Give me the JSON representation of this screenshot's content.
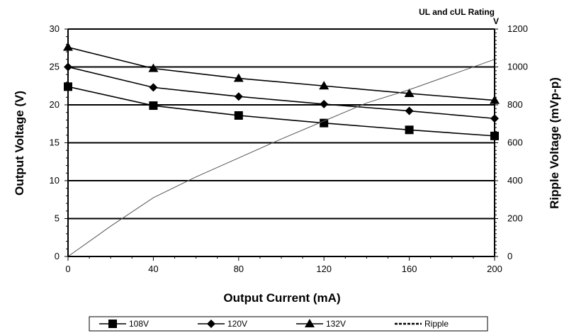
{
  "chart_data": {
    "type": "line",
    "title": "UL and cUL Rating",
    "title_suffix": "V",
    "xlabel": "Output Current (mA)",
    "ylabel": "Output Voltage (V)",
    "y2label": "Ripple Voltage (mVp-p)",
    "x": [
      0,
      40,
      80,
      120,
      160,
      200
    ],
    "x_ticks": [
      "0",
      "40",
      "80",
      "120",
      "160",
      "200"
    ],
    "xlim": [
      0,
      200
    ],
    "ylim": [
      0,
      30
    ],
    "y_ticks": [
      "0",
      "5",
      "10",
      "15",
      "20",
      "25",
      "30"
    ],
    "y2lim": [
      0,
      1200
    ],
    "y2_ticks": [
      "0",
      "200",
      "400",
      "600",
      "800",
      "1000",
      "1200"
    ],
    "grid": "horizontal",
    "legend_position": "bottom",
    "series": [
      {
        "name": "108V",
        "marker": "square",
        "axis": "left",
        "values": [
          22.4,
          19.9,
          18.6,
          17.6,
          16.7,
          15.9
        ]
      },
      {
        "name": "120V",
        "marker": "diamond",
        "axis": "left",
        "values": [
          25.0,
          22.3,
          21.1,
          20.1,
          19.2,
          18.2
        ]
      },
      {
        "name": "132V",
        "marker": "triangle",
        "axis": "left",
        "values": [
          27.6,
          24.8,
          23.5,
          22.5,
          21.5,
          20.6
        ]
      },
      {
        "name": "Ripple",
        "marker": "none",
        "axis": "right",
        "x": [
          0,
          20,
          40,
          60,
          80,
          100,
          120,
          140,
          160,
          180,
          200
        ],
        "values": [
          0,
          160,
          310,
          420,
          520,
          620,
          715,
          810,
          880,
          960,
          1040
        ]
      }
    ],
    "colors": {
      "line": "#000000",
      "grid": "#000000",
      "ripple": "#555555"
    }
  }
}
